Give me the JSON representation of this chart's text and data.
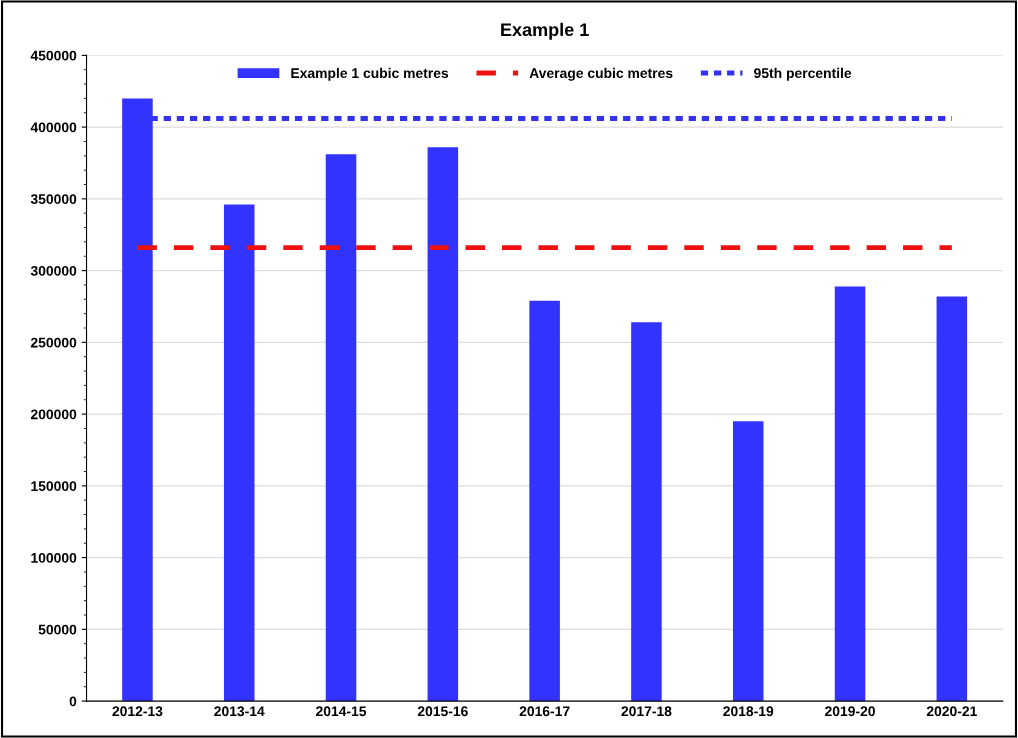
{
  "chart_data": {
    "type": "bar",
    "title": "Example 1",
    "categories": [
      "2012-13",
      "2013-14",
      "2014-15",
      "2015-16",
      "2016-17",
      "2017-18",
      "2018-19",
      "2019-20",
      "2020-21"
    ],
    "series": [
      {
        "name": "Example 1 cubic metres",
        "type": "bar",
        "color": "#3333ff",
        "values": [
          420000,
          346000,
          381000,
          386000,
          279000,
          264000,
          195000,
          289000,
          282000
        ]
      },
      {
        "name": "Average cubic metres",
        "type": "line",
        "color": "#ee1111",
        "line_style": "dashed",
        "values": [
          316000,
          316000,
          316000,
          316000,
          316000,
          316000,
          316000,
          316000,
          316000
        ]
      },
      {
        "name": "95th percentile",
        "type": "line",
        "color": "#3333ee",
        "line_style": "dotted",
        "values": [
          406000,
          406000,
          406000,
          406000,
          406000,
          406000,
          406000,
          406000,
          406000
        ]
      }
    ],
    "ylim": [
      0,
      450000
    ],
    "yticks": [
      0,
      50000,
      100000,
      150000,
      200000,
      250000,
      300000,
      350000,
      400000,
      450000
    ],
    "grid": "y",
    "legend": "top",
    "marker": "none"
  }
}
